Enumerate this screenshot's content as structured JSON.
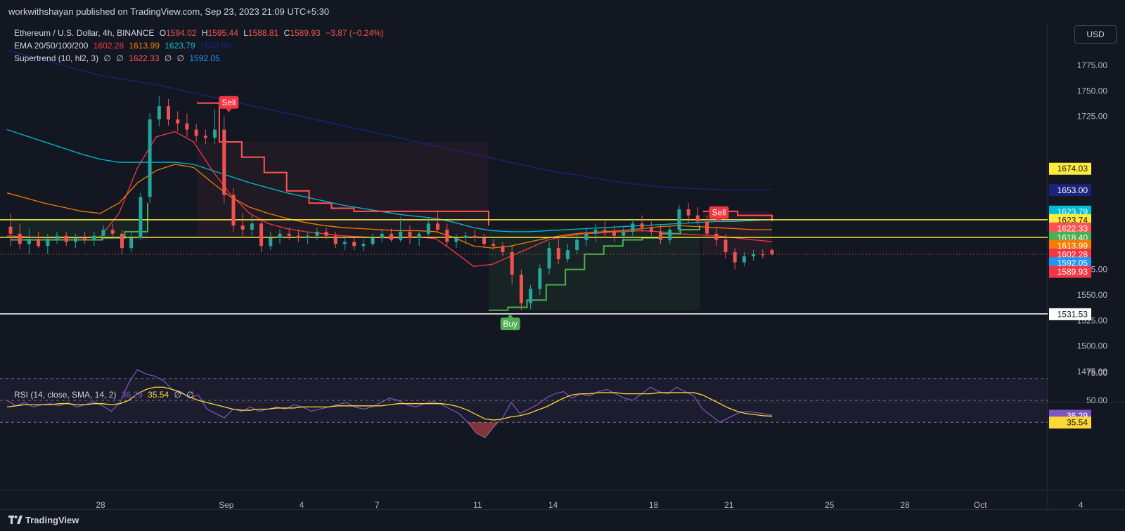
{
  "header": {
    "publisher": "workwithshayan published on TradingView.com, Sep 23, 2023 21:09 UTC+5:30",
    "currency_button": "USD"
  },
  "legend": {
    "symbol": "Ethereum / U.S. Dollar, 4h, BINANCE",
    "open_label": "O",
    "open": "1594.02",
    "high_label": "H",
    "high": "1595.44",
    "low_label": "L",
    "low": "1588.81",
    "close_label": "C",
    "close": "1589.93",
    "change": "−3.87 (−0.24%)",
    "ema_label": "EMA 20/50/100/200",
    "ema20": "1602.28",
    "ema50": "1613.99",
    "ema100": "1623.79",
    "ema200": "1653.00",
    "supertrend_label": "Supertrend (10, hl2, 3)",
    "st_empty1": "∅",
    "st_empty2": "∅",
    "st_value1": "1622.33",
    "st_empty3": "∅",
    "st_empty4": "∅",
    "st_value2": "1592.05",
    "rsi_label": "RSI (14, close, SMA, 14, 2)",
    "rsi_value": "36.29",
    "rsi_sma": "35.54",
    "rsi_empty1": "∅",
    "rsi_empty2": "∅"
  },
  "footer": {
    "brand": "TradingView"
  },
  "colors": {
    "background": "#131722",
    "up": "#26a69a",
    "down": "#ef5350",
    "ema20": "#f23645",
    "ema50": "#f57c00",
    "ema100": "#00bcd4",
    "ema200": "#1a237e",
    "supertrend_up": "#4caf50",
    "supertrend_down": "#ff5252",
    "rsi": "#7e57c2",
    "rsi_sma": "#fdd835",
    "horizontal_yellow": "#ffeb3b",
    "horizontal_white": "#ffffff"
  },
  "chart_data": [
    {
      "type": "candlestick",
      "timeframe": "4h",
      "x_tick_labels": [
        "28",
        "Sep",
        "4",
        "7",
        "11",
        "14",
        "18",
        "21",
        "25",
        "28",
        "Oct",
        "4"
      ],
      "y_tick_labels": [
        "1775.00",
        "1750.00",
        "1725.00",
        "1575.00",
        "1550.00",
        "1525.00",
        "1500.00",
        "1475.00"
      ],
      "ylim": [
        1465,
        1795
      ],
      "price_line": 1589.93,
      "horizontal_lines": [
        {
          "price": 1623.74,
          "color": "#ffeb3b"
        },
        {
          "price": 1606.5,
          "color": "#ffeb3b"
        },
        {
          "price": 1531.53,
          "color": "#ffffff"
        }
      ],
      "axis_badges": [
        {
          "label": "1674.03",
          "price": 1674.03,
          "bg": "#ffeb3b",
          "fg": "#131722"
        },
        {
          "label": "1653.00",
          "price": 1653.0,
          "bg": "#1a237e",
          "fg": "#ffffff"
        },
        {
          "label": "1623.79",
          "price": 1632.0,
          "bg": "#00bcd4",
          "fg": "#ffffff"
        },
        {
          "label": "1623.74",
          "price": 1623.74,
          "bg": "#ffeb3b",
          "fg": "#131722"
        },
        {
          "label": "1622.33",
          "price": 1615.5,
          "bg": "#ff5252",
          "fg": "#ffffff"
        },
        {
          "label": "1618.40",
          "price": 1606.5,
          "bg": "#4caf50",
          "fg": "#ffffff"
        },
        {
          "label": "1613.99",
          "price": 1598.5,
          "bg": "#f57c00",
          "fg": "#ffffff"
        },
        {
          "label": "1602.28",
          "price": 1590.0,
          "bg": "#f23645",
          "fg": "#ffffff"
        },
        {
          "label": "1592.05",
          "price": 1581.5,
          "bg": "#2196f3",
          "fg": "#ffffff"
        },
        {
          "label": "1589.93",
          "price": 1573.0,
          "bg": "#f23645",
          "fg": "#ffffff"
        },
        {
          "label": "1531.53",
          "price": 1531.53,
          "bg": "#ffffff",
          "fg": "#131722"
        }
      ],
      "signals": [
        {
          "label": "Sell",
          "day": 1.1,
          "price": 1738,
          "color": "#f23645"
        },
        {
          "label": "Buy",
          "day": 12.3,
          "price": 1521,
          "color": "#4caf50"
        },
        {
          "label": "Sell",
          "day": 20.6,
          "price": 1630,
          "color": "#f23645"
        }
      ],
      "candles_ohlc": [
        [
          1617,
          1630,
          1598,
          1610
        ],
        [
          1610,
          1620,
          1595,
          1600
        ],
        [
          1600,
          1615,
          1590,
          1605
        ],
        [
          1605,
          1612,
          1596,
          1598
        ],
        [
          1598,
          1610,
          1590,
          1605
        ],
        [
          1605,
          1612,
          1600,
          1608
        ],
        [
          1608,
          1612,
          1598,
          1602
        ],
        [
          1602,
          1610,
          1596,
          1606
        ],
        [
          1606,
          1612,
          1600,
          1604
        ],
        [
          1604,
          1612,
          1598,
          1608
        ],
        [
          1608,
          1618,
          1604,
          1614
        ],
        [
          1614,
          1620,
          1605,
          1610
        ],
        [
          1610,
          1614,
          1590,
          1596
        ],
        [
          1596,
          1612,
          1592,
          1606
        ],
        [
          1606,
          1650,
          1604,
          1646
        ],
        [
          1646,
          1728,
          1640,
          1722
        ],
        [
          1722,
          1745,
          1715,
          1735
        ],
        [
          1735,
          1742,
          1716,
          1722
        ],
        [
          1722,
          1730,
          1710,
          1718
        ],
        [
          1718,
          1728,
          1705,
          1712
        ],
        [
          1712,
          1718,
          1700,
          1706
        ],
        [
          1706,
          1712,
          1698,
          1704
        ],
        [
          1704,
          1732,
          1698,
          1712
        ],
        [
          1712,
          1725,
          1640,
          1648
        ],
        [
          1648,
          1655,
          1612,
          1618
        ],
        [
          1618,
          1630,
          1606,
          1614
        ],
        [
          1614,
          1628,
          1608,
          1620
        ],
        [
          1620,
          1625,
          1592,
          1598
        ],
        [
          1598,
          1612,
          1594,
          1606
        ],
        [
          1606,
          1614,
          1600,
          1610
        ],
        [
          1610,
          1616,
          1604,
          1608
        ],
        [
          1608,
          1614,
          1602,
          1606
        ],
        [
          1606,
          1612,
          1600,
          1608
        ],
        [
          1608,
          1616,
          1604,
          1612
        ],
        [
          1612,
          1616,
          1605,
          1608
        ],
        [
          1608,
          1612,
          1596,
          1600
        ],
        [
          1600,
          1608,
          1594,
          1602
        ],
        [
          1602,
          1606,
          1594,
          1598
        ],
        [
          1598,
          1605,
          1593,
          1600
        ],
        [
          1600,
          1610,
          1598,
          1606
        ],
        [
          1606,
          1614,
          1602,
          1610
        ],
        [
          1610,
          1615,
          1602,
          1604
        ],
        [
          1604,
          1626,
          1602,
          1612
        ],
        [
          1612,
          1618,
          1600,
          1606
        ],
        [
          1606,
          1612,
          1598,
          1610
        ],
        [
          1610,
          1626,
          1608,
          1620
        ],
        [
          1620,
          1632,
          1612,
          1614
        ],
        [
          1614,
          1620,
          1598,
          1602
        ],
        [
          1602,
          1610,
          1596,
          1606
        ],
        [
          1606,
          1612,
          1600,
          1608
        ],
        [
          1608,
          1614,
          1602,
          1606
        ],
        [
          1606,
          1610,
          1596,
          1600
        ],
        [
          1600,
          1605,
          1594,
          1598
        ],
        [
          1598,
          1602,
          1588,
          1592
        ],
        [
          1592,
          1598,
          1560,
          1570
        ],
        [
          1570,
          1575,
          1535,
          1542
        ],
        [
          1542,
          1560,
          1536,
          1556
        ],
        [
          1556,
          1580,
          1550,
          1576
        ],
        [
          1576,
          1602,
          1570,
          1596
        ],
        [
          1596,
          1606,
          1580,
          1585
        ],
        [
          1585,
          1600,
          1582,
          1594
        ],
        [
          1594,
          1610,
          1590,
          1604
        ],
        [
          1604,
          1615,
          1598,
          1610
        ],
        [
          1610,
          1620,
          1602,
          1614
        ],
        [
          1614,
          1622,
          1606,
          1612
        ],
        [
          1612,
          1618,
          1602,
          1608
        ],
        [
          1608,
          1616,
          1604,
          1612
        ],
        [
          1612,
          1625,
          1608,
          1620
        ],
        [
          1620,
          1628,
          1612,
          1616
        ],
        [
          1616,
          1622,
          1608,
          1612
        ],
        [
          1612,
          1618,
          1600,
          1604
        ],
        [
          1604,
          1618,
          1600,
          1614
        ],
        [
          1614,
          1638,
          1612,
          1634
        ],
        [
          1634,
          1640,
          1620,
          1628
        ],
        [
          1628,
          1636,
          1618,
          1622
        ],
        [
          1622,
          1628,
          1606,
          1610
        ],
        [
          1610,
          1616,
          1598,
          1604
        ],
        [
          1604,
          1610,
          1586,
          1592
        ],
        [
          1592,
          1596,
          1575,
          1582
        ],
        [
          1582,
          1592,
          1578,
          1588
        ],
        [
          1588,
          1594,
          1584,
          1590
        ],
        [
          1590,
          1595,
          1586,
          1589
        ],
        [
          1594.02,
          1595.44,
          1588.81,
          1589.93
        ]
      ],
      "ema_series": [
        {
          "name": "EMA 20",
          "values": [
            1608,
            1607,
            1606,
            1606,
            1606,
            1607,
            1630,
            1675,
            1705,
            1710,
            1700,
            1672,
            1648,
            1630,
            1620,
            1615,
            1612,
            1610,
            1608,
            1607,
            1606,
            1606,
            1607,
            1605,
            1592,
            1578,
            1580,
            1588,
            1596,
            1604,
            1608,
            1610,
            1611,
            1612,
            1613,
            1612,
            1610,
            1609,
            1608,
            1606,
            1604,
            1602.28
          ]
        },
        {
          "name": "EMA 50",
          "values": [
            1650,
            1645,
            1640,
            1636,
            1632,
            1630,
            1640,
            1660,
            1672,
            1678,
            1675,
            1660,
            1646,
            1636,
            1630,
            1625,
            1621,
            1618,
            1616,
            1615,
            1614,
            1613,
            1613,
            1612,
            1606,
            1598,
            1596,
            1598,
            1602,
            1606,
            1609,
            1611,
            1612,
            1613,
            1615,
            1617,
            1618,
            1617,
            1616,
            1615,
            1614,
            1613.99
          ]
        },
        {
          "name": "EMA 100",
          "values": [
            1712,
            1706,
            1700,
            1694,
            1688,
            1683,
            1680,
            1680,
            1680,
            1680,
            1678,
            1672,
            1666,
            1660,
            1655,
            1650,
            1646,
            1642,
            1638,
            1635,
            1632,
            1629,
            1627,
            1625,
            1621,
            1616,
            1613,
            1612,
            1612,
            1613,
            1614,
            1615,
            1616,
            1617,
            1618,
            1619,
            1620,
            1621,
            1622,
            1622,
            1623,
            1623.79
          ]
        },
        {
          "name": "EMA 200",
          "values": [
            1790,
            1785,
            1780,
            1775,
            1770,
            1765,
            1762,
            1759,
            1756,
            1752,
            1748,
            1744,
            1740,
            1736,
            1732,
            1728,
            1724,
            1720,
            1716,
            1712,
            1708,
            1704,
            1700,
            1696,
            1692,
            1688,
            1684,
            1680,
            1676,
            1672,
            1669,
            1666,
            1663,
            1660,
            1658,
            1656,
            1655,
            1654,
            1653.5,
            1653,
            1653,
            1653.0
          ]
        }
      ],
      "supertrend": {
        "up_segment_1": [
          1604,
          1604,
          1604,
          1604,
          1606,
          1612,
          1640
        ],
        "down_segment": [
          1738,
          1700,
          1685,
          1670,
          1652,
          1640,
          1635,
          1632,
          1632,
          1632,
          1632,
          1632,
          1632,
          1618
        ],
        "up_segment_2": [
          1535,
          1538,
          1545,
          1560,
          1575,
          1590,
          1598,
          1604,
          1606,
          1610,
          1614,
          1618.4
        ],
        "down_segment_2": [
          1632,
          1628,
          1622.33
        ]
      }
    },
    {
      "type": "line",
      "title": "RSI (14, close, SMA, 14, 2)",
      "y_tick_labels": [
        "75.00",
        "50.00"
      ],
      "ylim": [
        14,
        82
      ],
      "bands": [
        70,
        50,
        30
      ],
      "series": [
        {
          "name": "RSI",
          "values": [
            50,
            45,
            48,
            44,
            46,
            47,
            45,
            48,
            44,
            46,
            49,
            45,
            40,
            48,
            66,
            78,
            74,
            72,
            68,
            60,
            58,
            52,
            55,
            42,
            38,
            34,
            42,
            40,
            44,
            40,
            42,
            44,
            42,
            46,
            44,
            40,
            42,
            44,
            46,
            48,
            44,
            42,
            44,
            48,
            52,
            50,
            46,
            44,
            47,
            49,
            46,
            42,
            38,
            30,
            20,
            16,
            26,
            34,
            48,
            38,
            42,
            46,
            52,
            56,
            58,
            52,
            56,
            54,
            58,
            60,
            56,
            52,
            50,
            56,
            62,
            58,
            56,
            62,
            58,
            54,
            42,
            36,
            30,
            34,
            38,
            40,
            39,
            38,
            36.29
          ]
        },
        {
          "name": "RSI SMA",
          "values": [
            44,
            45,
            46,
            46,
            46,
            46,
            47,
            47,
            46,
            46,
            47,
            47,
            46,
            47,
            50,
            56,
            60,
            62,
            62,
            60,
            57,
            53,
            50,
            48,
            46,
            44,
            42,
            41,
            41,
            42,
            42,
            43,
            43,
            43,
            44,
            44,
            44,
            44,
            45,
            45,
            45,
            45,
            45,
            45,
            46,
            47,
            47,
            47,
            47,
            47,
            47,
            46,
            44,
            41,
            37,
            33,
            32,
            33,
            35,
            36,
            38,
            41,
            44,
            48,
            52,
            55,
            56,
            56,
            57,
            57,
            57,
            56,
            56,
            56,
            56,
            57,
            57,
            57,
            57,
            57,
            55,
            51,
            47,
            43,
            40,
            38,
            37,
            36,
            35.54
          ]
        }
      ]
    }
  ]
}
